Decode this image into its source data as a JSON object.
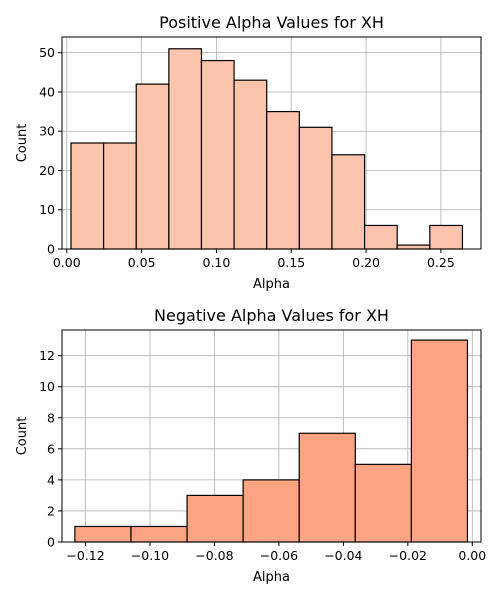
{
  "chart_data": [
    {
      "type": "bar",
      "title": "Positive Alpha Values for XH",
      "xlabel": "Alpha",
      "ylabel": "Count",
      "xlim": [
        -0.0032,
        0.2768
      ],
      "ylim": [
        0,
        54
      ],
      "xticks": [
        0.0,
        0.05,
        0.1,
        0.15,
        0.2,
        0.25
      ],
      "xtick_labels": [
        "0.00",
        "0.05",
        "0.10",
        "0.15",
        "0.20",
        "0.25"
      ],
      "yticks": [
        0,
        10,
        20,
        30,
        40,
        50
      ],
      "ytick_labels": [
        "0",
        "10",
        "20",
        "30",
        "40",
        "50"
      ],
      "grid": true,
      "bar_color": "#fdc4ad",
      "edge_color": "#000000",
      "bins": [
        {
          "x0": 0.0028,
          "x1": 0.0246,
          "count": 27
        },
        {
          "x0": 0.0246,
          "x1": 0.0464,
          "count": 27
        },
        {
          "x0": 0.0464,
          "x1": 0.0682,
          "count": 42
        },
        {
          "x0": 0.0682,
          "x1": 0.09,
          "count": 51
        },
        {
          "x0": 0.09,
          "x1": 0.1118,
          "count": 48
        },
        {
          "x0": 0.1118,
          "x1": 0.1336,
          "count": 43
        },
        {
          "x0": 0.1336,
          "x1": 0.1554,
          "count": 35
        },
        {
          "x0": 0.1554,
          "x1": 0.1772,
          "count": 31
        },
        {
          "x0": 0.1772,
          "x1": 0.199,
          "count": 24
        },
        {
          "x0": 0.199,
          "x1": 0.2208,
          "count": 6
        },
        {
          "x0": 0.2208,
          "x1": 0.2426,
          "count": 1
        },
        {
          "x0": 0.2426,
          "x1": 0.2644,
          "count": 6
        }
      ]
    },
    {
      "type": "bar",
      "title": "Negative Alpha Values for XH",
      "xlabel": "Alpha",
      "ylabel": "Count",
      "xlim": [
        -0.1273,
        0.0027
      ],
      "ylim": [
        0,
        13.65
      ],
      "xticks": [
        -0.12,
        -0.1,
        -0.08,
        -0.06,
        -0.04,
        -0.02,
        0.0
      ],
      "xtick_labels": [
        "−0.12",
        "−0.10",
        "−0.08",
        "−0.06",
        "−0.04",
        "−0.02",
        "0.00"
      ],
      "yticks": [
        0,
        2,
        4,
        6,
        8,
        10,
        12
      ],
      "ytick_labels": [
        "0",
        "2",
        "4",
        "6",
        "8",
        "10",
        "12"
      ],
      "grid": true,
      "bar_color": "#fca482",
      "edge_color": "#000000",
      "bins": [
        {
          "x0": -0.1233,
          "x1": -0.1059,
          "count": 1
        },
        {
          "x0": -0.1059,
          "x1": -0.0885,
          "count": 1
        },
        {
          "x0": -0.0885,
          "x1": -0.0711,
          "count": 3
        },
        {
          "x0": -0.0711,
          "x1": -0.0537,
          "count": 4
        },
        {
          "x0": -0.0537,
          "x1": -0.0363,
          "count": 7
        },
        {
          "x0": -0.0363,
          "x1": -0.0189,
          "count": 5
        },
        {
          "x0": -0.0189,
          "x1": -0.0015,
          "count": 13
        }
      ]
    }
  ]
}
